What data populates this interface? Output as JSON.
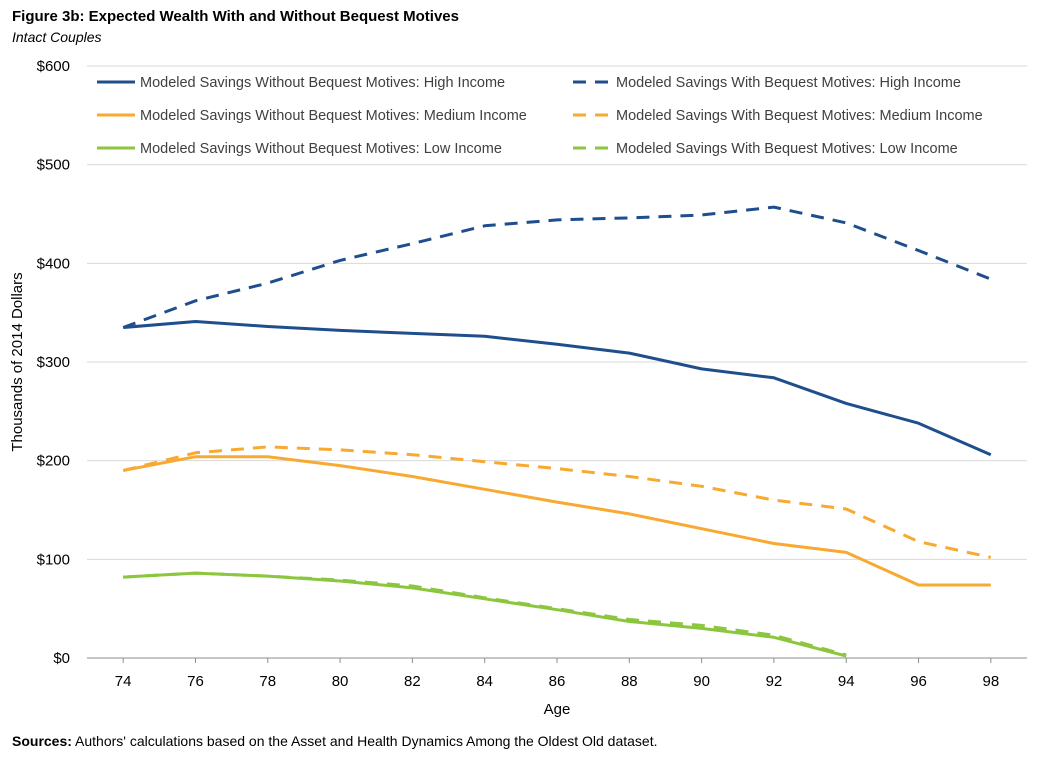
{
  "header": {
    "title": "Figure 3b: Expected Wealth With and Without Bequest Motives",
    "subtitle": "Intact Couples"
  },
  "footer": {
    "source_label": "Sources:",
    "source_text": "Authors' calculations based on the Asset and Health Dynamics Among the Oldest Old dataset."
  },
  "chart_data": {
    "type": "line",
    "title": "Figure 3b: Expected Wealth With and Without Bequest Motives",
    "subtitle": "Intact Couples",
    "xlabel": "Age",
    "ylabel": "Thousands of 2014 Dollars",
    "x": [
      74,
      76,
      78,
      80,
      82,
      84,
      86,
      88,
      90,
      92,
      94,
      96,
      98
    ],
    "xlim": [
      73,
      99
    ],
    "ylim": [
      0,
      600
    ],
    "yticks": [
      0,
      100,
      200,
      300,
      400,
      500,
      600
    ],
    "ytick_labels": [
      "$0",
      "$100",
      "$200",
      "$300",
      "$400",
      "$500",
      "$600"
    ],
    "grid": "horizontal",
    "legend_position": "top",
    "series": [
      {
        "name": "Modeled Savings Without Bequest Motives: High Income",
        "color": "#1F4E8C",
        "dash": "solid",
        "values": [
          335,
          341,
          336,
          332,
          329,
          326,
          318,
          309,
          293,
          284,
          258,
          238,
          206
        ]
      },
      {
        "name": "Modeled Savings With Bequest Motives: High Income",
        "color": "#1F4E8C",
        "dash": "dashed",
        "values": [
          335,
          362,
          380,
          403,
          420,
          438,
          444,
          446,
          449,
          457,
          441,
          413,
          384
        ]
      },
      {
        "name": "Modeled Savings Without Bequest Motives: Medium Income",
        "color": "#F8A932",
        "dash": "solid",
        "values": [
          190,
          204,
          204,
          195,
          184,
          171,
          158,
          146,
          131,
          116,
          107,
          74,
          74
        ]
      },
      {
        "name": "Modeled Savings With Bequest Motives: Medium Income",
        "color": "#F8A932",
        "dash": "dashed",
        "values": [
          190,
          208,
          214,
          211,
          206,
          199,
          192,
          184,
          174,
          160,
          151,
          118,
          102
        ]
      },
      {
        "name": "Modeled Savings Without Bequest Motives: Low Income",
        "color": "#8CC63F",
        "dash": "solid",
        "values": [
          82,
          86,
          83,
          78,
          71,
          60,
          49,
          37,
          30,
          21,
          2,
          null,
          null
        ]
      },
      {
        "name": "Modeled Savings With Bequest Motives: Low Income",
        "color": "#8CC63F",
        "dash": "dashed",
        "values": [
          82,
          86,
          83,
          79,
          73,
          61,
          50,
          39,
          33,
          23,
          3,
          null,
          null
        ]
      }
    ]
  }
}
